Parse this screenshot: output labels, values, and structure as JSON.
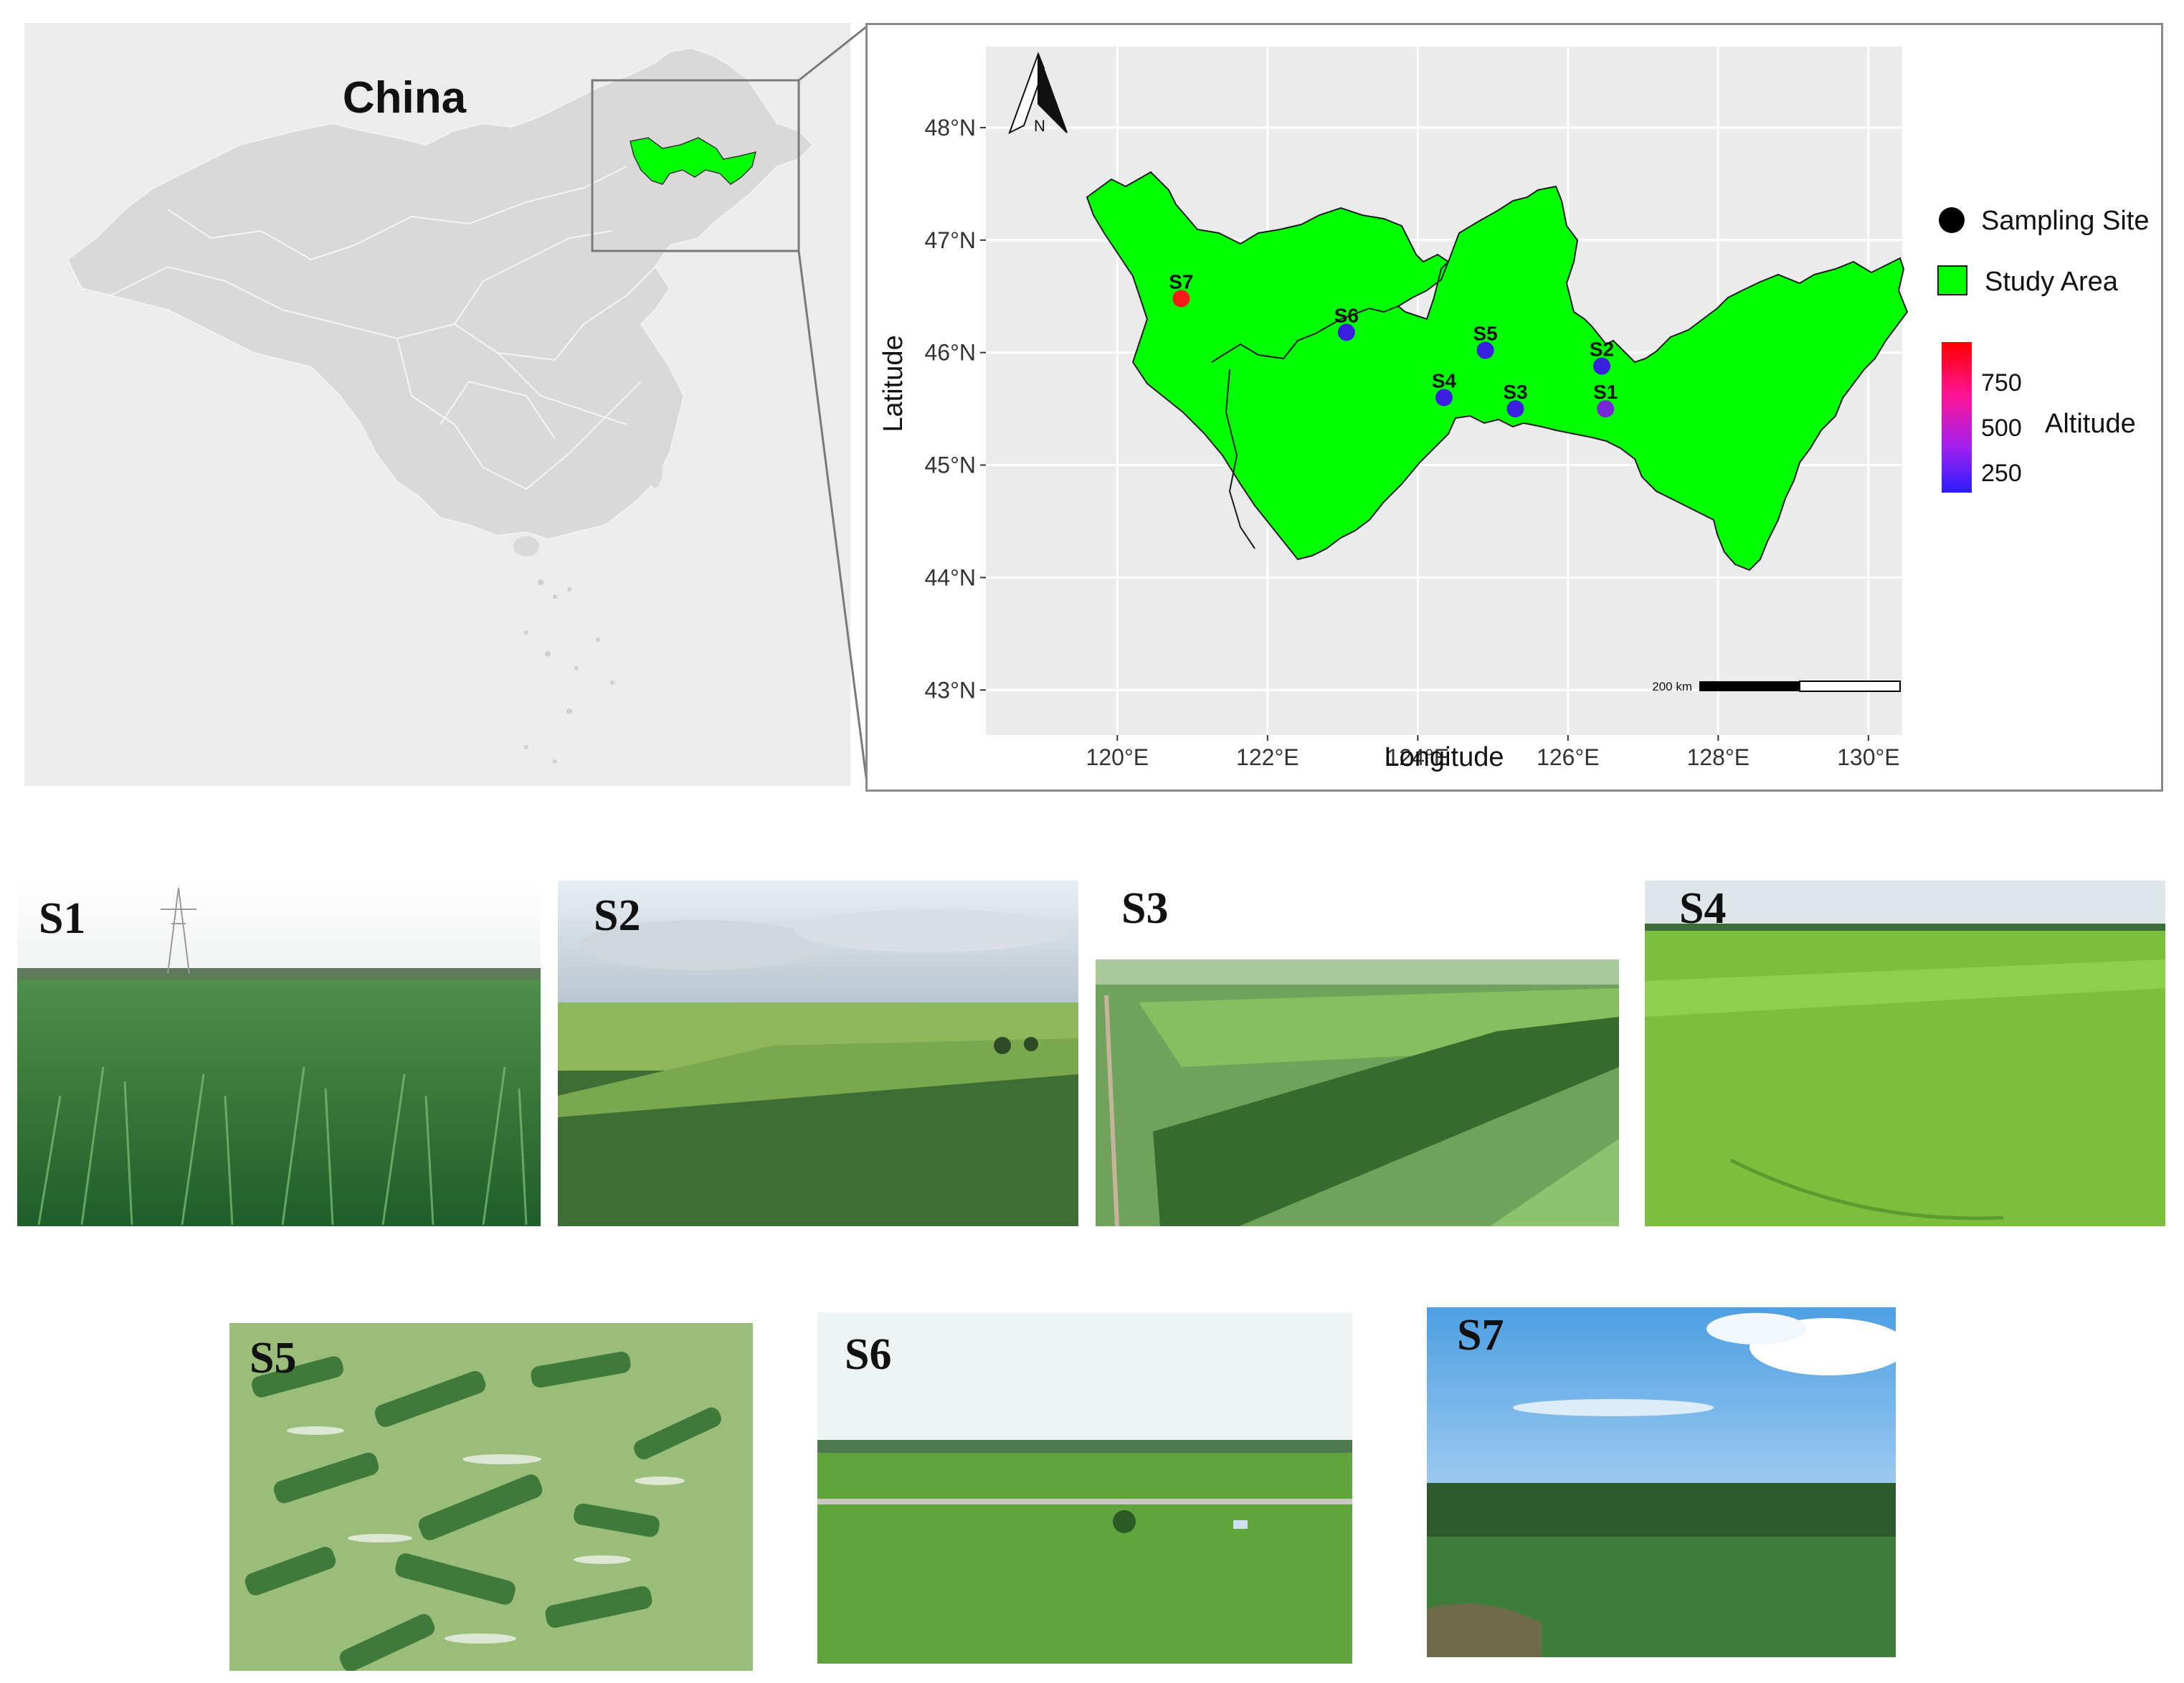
{
  "inset": {
    "country_label": "China"
  },
  "map": {
    "north_label": "N",
    "lat_ticks": [
      "48°N",
      "47°N",
      "46°N",
      "45°N",
      "44°N",
      "43°N"
    ],
    "lon_ticks": [
      "120°E",
      "122°E",
      "124°E",
      "126°E",
      "128°E",
      "130°E"
    ],
    "x_axis_title": "Longitude",
    "y_axis_title": "Latitude",
    "scale_bar_label": "200 km",
    "sites": [
      {
        "id": "S1",
        "lon": 126.5,
        "lat": 45.5,
        "altitude": 180,
        "color": "#7a27d9"
      },
      {
        "id": "S2",
        "lon": 126.45,
        "lat": 45.88,
        "altitude": 140,
        "color": "#3a1fe0"
      },
      {
        "id": "S3",
        "lon": 125.3,
        "lat": 45.5,
        "altitude": 140,
        "color": "#3a1fe0"
      },
      {
        "id": "S4",
        "lon": 124.35,
        "lat": 45.6,
        "altitude": 140,
        "color": "#3a1fe0"
      },
      {
        "id": "S5",
        "lon": 124.9,
        "lat": 46.02,
        "altitude": 140,
        "color": "#3a1fe0"
      },
      {
        "id": "S6",
        "lon": 123.05,
        "lat": 46.18,
        "altitude": 140,
        "color": "#3a1fe0"
      },
      {
        "id": "S7",
        "lon": 120.85,
        "lat": 46.48,
        "altitude": 900,
        "color": "#ff1a1a"
      }
    ],
    "study_area_color": "#00ff00"
  },
  "legend": {
    "sampling_site_label": "Sampling Site",
    "study_area_label": "Study Area",
    "altitude_title": "Altitude",
    "altitude_ticks": [
      "750",
      "500",
      "250"
    ],
    "gradient_colors": [
      "#ff0000",
      "#ff1493",
      "#a020f0",
      "#2b1fff"
    ]
  },
  "photos": [
    {
      "label": "S1",
      "scene": "cornfield-closeup"
    },
    {
      "label": "S2",
      "scene": "aerial-farmland-cloudy"
    },
    {
      "label": "S3",
      "scene": "aerial-farmland-shelterbelt"
    },
    {
      "label": "S4",
      "scene": "aerial-green-fields"
    },
    {
      "label": "S5",
      "scene": "aerial-patchy-fields"
    },
    {
      "label": "S6",
      "scene": "aerial-wide-plain"
    },
    {
      "label": "S7",
      "scene": "cornfield-blue-sky"
    }
  ]
}
